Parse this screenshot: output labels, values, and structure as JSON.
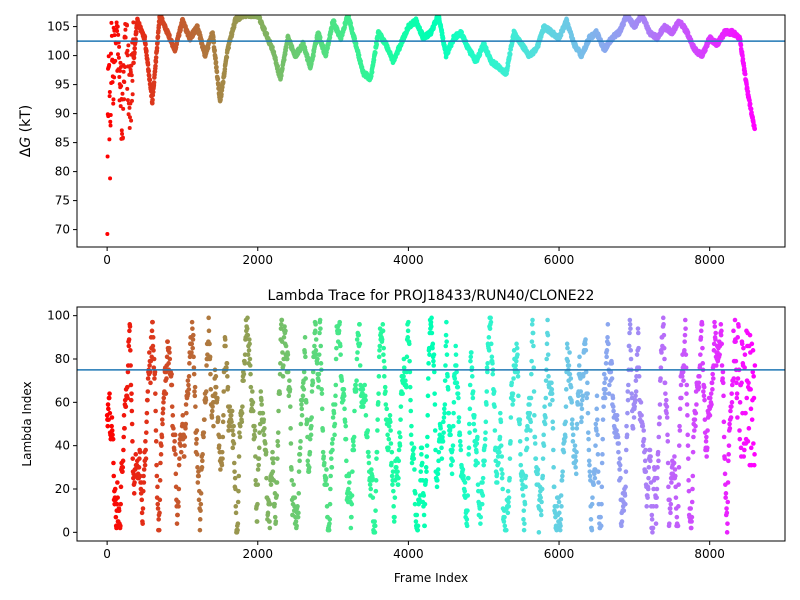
{
  "chart_data": [
    {
      "type": "scatter",
      "title": "",
      "xlabel": "",
      "ylabel_prefix": "Δ",
      "ylabel_symbol": "G",
      "ylabel_suffix": " (kT)",
      "xlim": [
        -400,
        9000
      ],
      "ylim": [
        67,
        107
      ],
      "xticks": [
        "0",
        "2000",
        "4000",
        "6000",
        "8000"
      ],
      "xtick_values": [
        0,
        2000,
        4000,
        6000,
        8000
      ],
      "yticks": [
        "70",
        "75",
        "80",
        "85",
        "90",
        "95",
        "100",
        "105"
      ],
      "ytick_values": [
        70,
        75,
        80,
        85,
        90,
        95,
        100,
        105
      ],
      "hline": 102.5,
      "hline_color": "#1f77b4",
      "colormap": "rainbow",
      "marker": "point",
      "x_max_frame": 8600,
      "series_keypoints": [
        [
          0,
          70
        ],
        [
          10,
          90
        ],
        [
          20,
          100
        ],
        [
          40,
          84
        ],
        [
          60,
          102
        ],
        [
          80,
          96
        ],
        [
          100,
          107
        ],
        [
          150,
          100
        ],
        [
          200,
          88
        ],
        [
          250,
          104
        ],
        [
          300,
          92
        ],
        [
          400,
          106
        ],
        [
          500,
          103
        ],
        [
          600,
          92
        ],
        [
          700,
          107
        ],
        [
          800,
          104
        ],
        [
          900,
          101
        ],
        [
          1000,
          106
        ],
        [
          1100,
          103
        ],
        [
          1200,
          105
        ],
        [
          1300,
          100
        ],
        [
          1400,
          104
        ],
        [
          1500,
          92
        ],
        [
          1600,
          101
        ],
        [
          1700,
          106
        ],
        [
          1800,
          107
        ],
        [
          2000,
          107
        ],
        [
          2100,
          104
        ],
        [
          2200,
          101
        ],
        [
          2300,
          96
        ],
        [
          2400,
          103
        ],
        [
          2500,
          100
        ],
        [
          2600,
          102
        ],
        [
          2700,
          98
        ],
        [
          2800,
          104
        ],
        [
          2900,
          100
        ],
        [
          3000,
          106
        ],
        [
          3100,
          103
        ],
        [
          3200,
          107
        ],
        [
          3300,
          102
        ],
        [
          3400,
          97
        ],
        [
          3500,
          96
        ],
        [
          3600,
          104
        ],
        [
          3700,
          102
        ],
        [
          3800,
          99
        ],
        [
          3900,
          102
        ],
        [
          4000,
          105
        ],
        [
          4100,
          106
        ],
        [
          4200,
          103
        ],
        [
          4300,
          104
        ],
        [
          4400,
          107
        ],
        [
          4500,
          100
        ],
        [
          4600,
          103
        ],
        [
          4700,
          104
        ],
        [
          4800,
          101
        ],
        [
          4900,
          99
        ],
        [
          5000,
          102
        ],
        [
          5100,
          99
        ],
        [
          5200,
          98
        ],
        [
          5300,
          97
        ],
        [
          5400,
          104
        ],
        [
          5500,
          102
        ],
        [
          5600,
          100
        ],
        [
          5700,
          101
        ],
        [
          5800,
          105
        ],
        [
          5900,
          104
        ],
        [
          6000,
          103
        ],
        [
          6100,
          106
        ],
        [
          6200,
          102
        ],
        [
          6300,
          100
        ],
        [
          6400,
          103
        ],
        [
          6500,
          104
        ],
        [
          6600,
          101
        ],
        [
          6700,
          103
        ],
        [
          6800,
          104
        ],
        [
          6900,
          107
        ],
        [
          7000,
          105
        ],
        [
          7100,
          107
        ],
        [
          7200,
          104
        ],
        [
          7300,
          103
        ],
        [
          7400,
          105
        ],
        [
          7500,
          104
        ],
        [
          7600,
          106
        ],
        [
          7700,
          104
        ],
        [
          7800,
          101
        ],
        [
          7900,
          100
        ],
        [
          8000,
          103
        ],
        [
          8100,
          102
        ],
        [
          8200,
          104
        ],
        [
          8300,
          104
        ],
        [
          8400,
          103
        ],
        [
          8500,
          94
        ],
        [
          8600,
          87
        ]
      ]
    },
    {
      "type": "scatter",
      "title": "Lambda Trace for PROJ18433/RUN40/CLONE22",
      "xlabel": "Frame Index",
      "ylabel": "Lambda Index",
      "xlim": [
        -400,
        9000
      ],
      "ylim": [
        -4,
        104
      ],
      "xticks": [
        "0",
        "2000",
        "4000",
        "6000",
        "8000"
      ],
      "xtick_values": [
        0,
        2000,
        4000,
        6000,
        8000
      ],
      "yticks": [
        "0",
        "20",
        "40",
        "60",
        "80",
        "100"
      ],
      "ytick_values": [
        0,
        20,
        40,
        60,
        80,
        100
      ],
      "hline": 75,
      "hline_color": "#1f77b4",
      "colormap": "rainbow",
      "marker": "point",
      "x_max_frame": 8600,
      "lambda_min": 0,
      "lambda_max": 99
    }
  ]
}
